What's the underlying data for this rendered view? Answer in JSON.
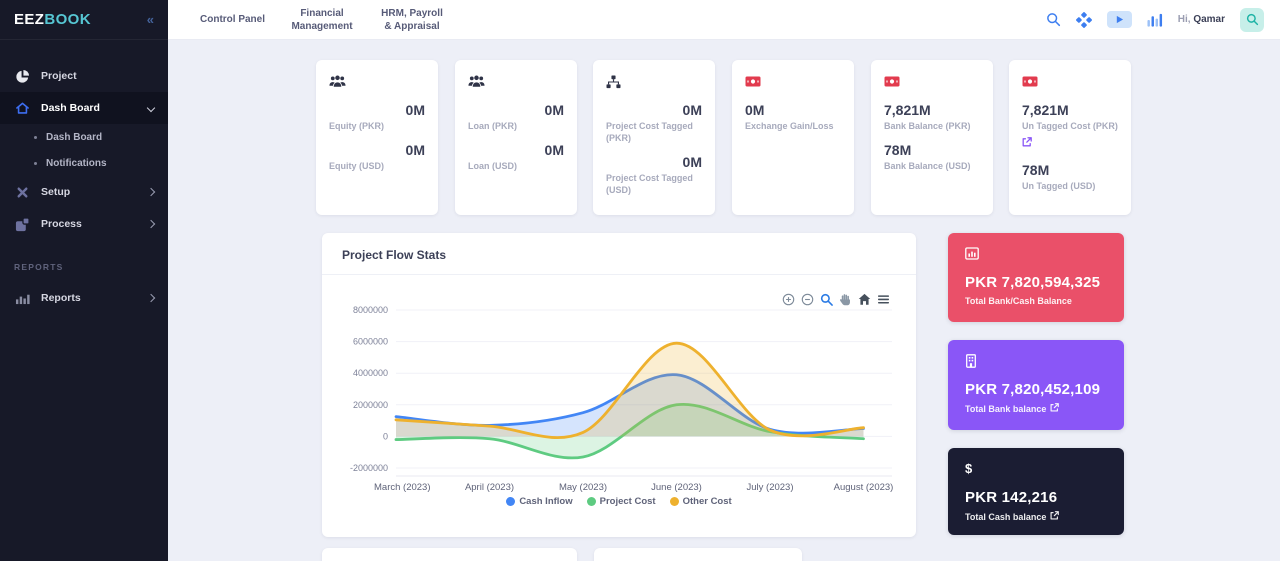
{
  "app": {
    "logo_primary": "EEZ",
    "logo_accent": "BOOK"
  },
  "sidebar": {
    "project": "Project",
    "dashboard": "Dash Board",
    "dashboard_sub": "Dash Board",
    "notifications": "Notifications",
    "setup": "Setup",
    "process": "Process",
    "reports_section": "REPORTS",
    "reports": "Reports"
  },
  "topbar": {
    "tabs": [
      {
        "label": "Control Panel"
      },
      {
        "label": "Financial Management"
      },
      {
        "label": "HRM, Payroll & Appraisal"
      }
    ],
    "greeting": "Hi,",
    "user": "Qamar"
  },
  "stat_cards": [
    {
      "icon": "users-icon",
      "entries": [
        {
          "value": "0M",
          "label": "Equity (PKR)"
        },
        {
          "value": "0M",
          "label": "Equity (USD)"
        }
      ]
    },
    {
      "icon": "users-icon",
      "entries": [
        {
          "value": "0M",
          "label": "Loan (PKR)"
        },
        {
          "value": "0M",
          "label": "Loan (USD)"
        }
      ]
    },
    {
      "icon": "sitemap-icon",
      "entries": [
        {
          "value": "0M",
          "label": "Project Cost Tagged (PKR)"
        },
        {
          "value": "0M",
          "label": "Project Cost Tagged (USD)"
        }
      ]
    },
    {
      "icon": "money-icon",
      "entries": [
        {
          "value": "0M",
          "label": "Exchange Gain/Loss"
        }
      ]
    },
    {
      "icon": "money-icon",
      "entries": [
        {
          "value": "7,821M",
          "label": "Bank Balance (PKR)"
        },
        {
          "value": "78M",
          "label": "Bank Balance (USD)"
        }
      ]
    },
    {
      "icon": "money-icon",
      "entries": [
        {
          "value": "7,821M",
          "label": "Un Tagged Cost (PKR)",
          "link": true
        },
        {
          "value": "78M",
          "label": "Un Tagged (USD)"
        }
      ]
    }
  ],
  "chart_card": {
    "title": "Project Flow Stats"
  },
  "chart_data": {
    "type": "area",
    "title": "Project Flow Stats",
    "x": [
      "March (2023)",
      "April (2023)",
      "May (2023)",
      "June (2023)",
      "July (2023)",
      "August (2023)"
    ],
    "series": [
      {
        "name": "Cash Inflow",
        "color": "#4286f5",
        "values": [
          1250000,
          700000,
          1500000,
          3900000,
          450000,
          500000
        ]
      },
      {
        "name": "Project Cost",
        "color": "#5ecb81",
        "values": [
          -200000,
          -150000,
          -1300000,
          2000000,
          300000,
          -150000
        ]
      },
      {
        "name": "Other Cost",
        "color": "#eeb12e",
        "values": [
          1050000,
          650000,
          250000,
          5900000,
          400000,
          550000
        ]
      }
    ],
    "ylim": [
      -2000000,
      8000000
    ],
    "yticks": [
      8000000,
      6000000,
      4000000,
      2000000,
      0,
      -2000000
    ],
    "grid": true,
    "legend_position": "bottom"
  },
  "summary_cards": [
    {
      "value": "PKR 7,820,594,325",
      "label": "Total Bank/Cash Balance",
      "color": "#ea5069",
      "icon": "chart-icon",
      "link": false
    },
    {
      "value": "PKR 7,820,452,109",
      "label": "Total Bank balance",
      "color": "#8a56f7",
      "icon": "bank-icon",
      "link": true
    },
    {
      "value": "PKR 142,216",
      "label": "Total Cash balance",
      "color": "#1b1d33",
      "icon": "dollar-icon",
      "link": true
    }
  ],
  "colors": {
    "accent_teal": "#56c6d3",
    "accent_blue": "#3d7ef0",
    "sidebar_bg": "#171928",
    "page_bg": "#edeff7"
  }
}
